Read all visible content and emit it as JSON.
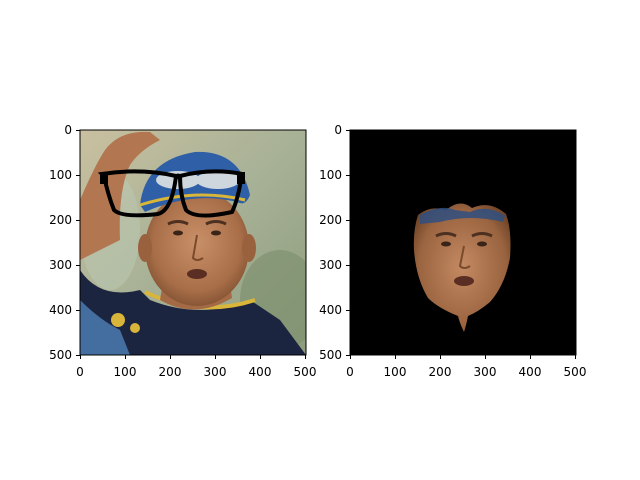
{
  "figure": {
    "panels": [
      {
        "id": "left",
        "description_tag": "original-with-glasses",
        "x_ticks": [
          "0",
          "100",
          "200",
          "300",
          "400",
          "500"
        ],
        "y_ticks": [
          "0",
          "100",
          "200",
          "300",
          "400",
          "500"
        ]
      },
      {
        "id": "right",
        "description_tag": "masked-face",
        "x_ticks": [
          "0",
          "100",
          "200",
          "300",
          "400",
          "500"
        ],
        "y_ticks": [
          "0",
          "100",
          "200",
          "300",
          "400",
          "500"
        ]
      }
    ],
    "colors": {
      "mask_background": "#000000",
      "cap": "#2f5fa6",
      "skin": "#b57a52",
      "shirt": "#1c2540",
      "trim": "#d9b53a",
      "background_left": "#9aa88a"
    }
  }
}
